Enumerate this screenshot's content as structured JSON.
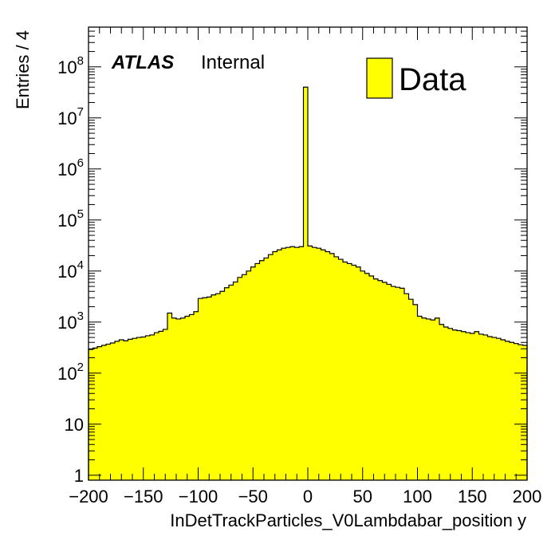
{
  "chart_data": {
    "type": "histogram",
    "xlabel": "InDetTrackParticles_V0Lambdabar_position y",
    "ylabel": "Entries / 4",
    "xlim": [
      -200,
      200
    ],
    "ylim": [
      0.8,
      600000000
    ],
    "yscale": "log",
    "bin_width": 4,
    "x_ticks": [
      -200,
      -150,
      -100,
      -50,
      0,
      50,
      100,
      150,
      200
    ],
    "y_ticks": [
      {
        "value": 1,
        "base": "1",
        "exp": ""
      },
      {
        "value": 10,
        "base": "10",
        "exp": ""
      },
      {
        "value": 100,
        "base": "10",
        "exp": "2"
      },
      {
        "value": 1000,
        "base": "10",
        "exp": "3"
      },
      {
        "value": 10000,
        "base": "10",
        "exp": "4"
      },
      {
        "value": 100000,
        "base": "10",
        "exp": "5"
      },
      {
        "value": 1000000,
        "base": "10",
        "exp": "6"
      },
      {
        "value": 10000000,
        "base": "10",
        "exp": "7"
      },
      {
        "value": 100000000,
        "base": "10",
        "exp": "8"
      }
    ],
    "series": [
      {
        "name": "Data",
        "color": "#ffff00",
        "edges": [
          -200,
          -196,
          -192,
          -188,
          -184,
          -180,
          -176,
          -172,
          -168,
          -164,
          -160,
          -156,
          -152,
          -148,
          -144,
          -140,
          -136,
          -132,
          -128,
          -124,
          -120,
          -116,
          -112,
          -108,
          -104,
          -100,
          -96,
          -92,
          -88,
          -84,
          -80,
          -76,
          -72,
          -68,
          -64,
          -60,
          -56,
          -52,
          -48,
          -44,
          -40,
          -36,
          -32,
          -28,
          -24,
          -20,
          -16,
          -12,
          -8,
          -4,
          0,
          4,
          8,
          12,
          16,
          20,
          24,
          28,
          32,
          36,
          40,
          44,
          48,
          52,
          56,
          60,
          64,
          68,
          72,
          76,
          80,
          84,
          88,
          92,
          96,
          100,
          104,
          108,
          112,
          116,
          120,
          124,
          128,
          132,
          136,
          140,
          144,
          148,
          152,
          156,
          160,
          164,
          168,
          172,
          176,
          180,
          184,
          188,
          192,
          196,
          200
        ],
        "values": [
          290,
          310,
          330,
          350,
          370,
          390,
          420,
          450,
          430,
          460,
          480,
          500,
          510,
          540,
          560,
          620,
          660,
          720,
          1500,
          1200,
          1150,
          1200,
          1300,
          1400,
          1600,
          2900,
          3000,
          3100,
          3400,
          3600,
          4000,
          4700,
          5300,
          6100,
          7500,
          8500,
          10000,
          12000,
          14000,
          16000,
          18000,
          21000,
          24000,
          26000,
          28000,
          29000,
          30000,
          29000,
          30000,
          40000000,
          31000,
          29000,
          28000,
          26000,
          24000,
          22000,
          19000,
          17000,
          15000,
          14000,
          13000,
          12000,
          10000,
          9000,
          8000,
          7000,
          6500,
          6000,
          5500,
          5000,
          4800,
          4600,
          3600,
          2800,
          2200,
          1300,
          1200,
          1150,
          1100,
          1200,
          900,
          800,
          750,
          700,
          680,
          650,
          620,
          600,
          650,
          580,
          560,
          520,
          500,
          480,
          450,
          420,
          400,
          380,
          360,
          350
        ]
      }
    ],
    "legend": {
      "position": "top-right",
      "entries": [
        "Data"
      ]
    },
    "annotations": {
      "atlas": "ATLAS",
      "label": "Internal"
    }
  }
}
